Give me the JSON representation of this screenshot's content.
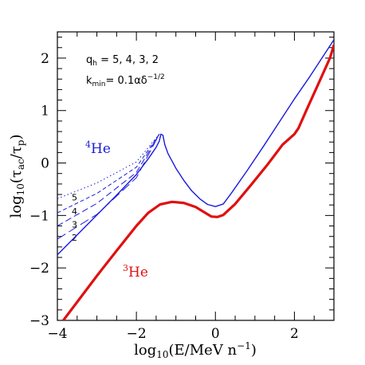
{
  "chart_data": {
    "type": "line",
    "xlabel": "log10(E/MeV n-1)",
    "ylabel": "log10(τac/τp)",
    "xlim": [
      -4,
      3
    ],
    "ylim": [
      -3,
      2.5
    ],
    "x_ticks": [
      -4,
      -2,
      0,
      2
    ],
    "x_tick_labels": [
      "−4",
      "−2",
      "0",
      "2"
    ],
    "y_ticks": [
      -3,
      -2,
      -1,
      0,
      1,
      2
    ],
    "y_tick_labels": [
      "−3",
      "−2",
      "−1",
      "0",
      "1",
      "2"
    ],
    "annotations": {
      "q_line": "q_h = 5, 4, 3, 2",
      "k_line": "k_min= 0.1αδ^−1/2"
    },
    "series": [
      {
        "name": "4He",
        "label_superscript": "4",
        "label_main": "He",
        "color": "#1a1adb",
        "style": "solid",
        "points": [
          [
            -4.0,
            -1.75
          ],
          [
            -3.5,
            -1.37
          ],
          [
            -3.0,
            -0.99
          ],
          [
            -2.5,
            -0.61
          ],
          [
            -2.0,
            -0.22
          ],
          [
            -1.7,
            0.08
          ],
          [
            -1.5,
            0.3
          ],
          [
            -1.42,
            0.42
          ],
          [
            -1.38,
            0.55
          ],
          [
            -1.33,
            0.53
          ],
          [
            -1.28,
            0.35
          ],
          [
            -1.2,
            0.18
          ],
          [
            -1.0,
            -0.1
          ],
          [
            -0.8,
            -0.33
          ],
          [
            -0.6,
            -0.53
          ],
          [
            -0.4,
            -0.68
          ],
          [
            -0.2,
            -0.79
          ],
          [
            0.0,
            -0.83
          ],
          [
            0.2,
            -0.78
          ],
          [
            0.4,
            -0.58
          ],
          [
            0.8,
            -0.15
          ],
          [
            1.2,
            0.3
          ],
          [
            1.6,
            0.76
          ],
          [
            2.0,
            1.22
          ],
          [
            2.4,
            1.66
          ],
          [
            2.8,
            2.12
          ],
          [
            3.0,
            2.35
          ]
        ]
      },
      {
        "name": "3He",
        "label_superscript": "3",
        "label_main": "He",
        "color": "#e01010",
        "style": "solid-thick",
        "points": [
          [
            -3.85,
            -3.0
          ],
          [
            -3.5,
            -2.65
          ],
          [
            -3.0,
            -2.15
          ],
          [
            -2.5,
            -1.67
          ],
          [
            -2.0,
            -1.2
          ],
          [
            -1.7,
            -0.95
          ],
          [
            -1.4,
            -0.79
          ],
          [
            -1.1,
            -0.74
          ],
          [
            -0.8,
            -0.76
          ],
          [
            -0.5,
            -0.84
          ],
          [
            -0.3,
            -0.93
          ],
          [
            -0.1,
            -1.02
          ],
          [
            0.05,
            -1.03
          ],
          [
            0.2,
            -0.99
          ],
          [
            0.5,
            -0.78
          ],
          [
            0.9,
            -0.42
          ],
          [
            1.3,
            -0.05
          ],
          [
            1.7,
            0.35
          ],
          [
            2.0,
            0.55
          ],
          [
            2.1,
            0.66
          ],
          [
            2.3,
            1.0
          ],
          [
            2.6,
            1.5
          ],
          [
            2.9,
            2.0
          ],
          [
            3.0,
            2.25
          ]
        ]
      }
    ],
    "low_energy_variants": [
      {
        "label": "5",
        "style": "dotted",
        "points": [
          [
            -4.0,
            -0.68
          ],
          [
            -3.0,
            -0.38
          ],
          [
            -2.0,
            0.02
          ],
          [
            -1.42,
            0.55
          ]
        ]
      },
      {
        "label": "4",
        "style": "dashed-short",
        "points": [
          [
            -4.0,
            -0.95
          ],
          [
            -3.0,
            -0.58
          ],
          [
            -2.0,
            -0.08
          ],
          [
            -1.42,
            0.55
          ]
        ]
      },
      {
        "label": "3",
        "style": "dashed",
        "points": [
          [
            -4.0,
            -1.2
          ],
          [
            -3.0,
            -0.77
          ],
          [
            -2.0,
            -0.18
          ],
          [
            -1.42,
            0.55
          ]
        ]
      },
      {
        "label": "2",
        "style": "dashed-long",
        "points": [
          [
            -4.0,
            -1.45
          ],
          [
            -3.0,
            -0.98
          ],
          [
            -2.0,
            -0.28
          ],
          [
            -1.42,
            0.55
          ]
        ]
      }
    ]
  }
}
